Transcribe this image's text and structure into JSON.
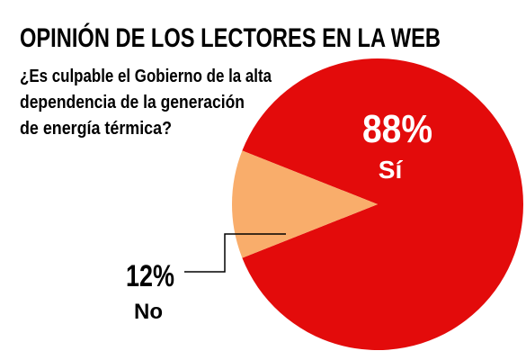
{
  "header": {
    "title": "OPINIÓN DE LOS LECTORES EN LA WEB",
    "subtitle_lines": [
      "¿Es culpable el Gobierno de la alta",
      "dependencia de la generación",
      "de energía térmica?"
    ]
  },
  "chart_data": {
    "type": "pie",
    "title": "OPINIÓN DE LOS LECTORES EN LA WEB",
    "subtitle": "¿Es culpable el Gobierno de la alta dependencia de la generación de energía térmica?",
    "slices": [
      {
        "label": "Sí",
        "value": 88,
        "value_label": "88%",
        "color": "#e30b0b",
        "text_color": "#ffffff"
      },
      {
        "label": "No",
        "value": 12,
        "value_label": "12%",
        "color": "#f9ad6b",
        "text_color": "#000000"
      }
    ],
    "legend": "none"
  }
}
